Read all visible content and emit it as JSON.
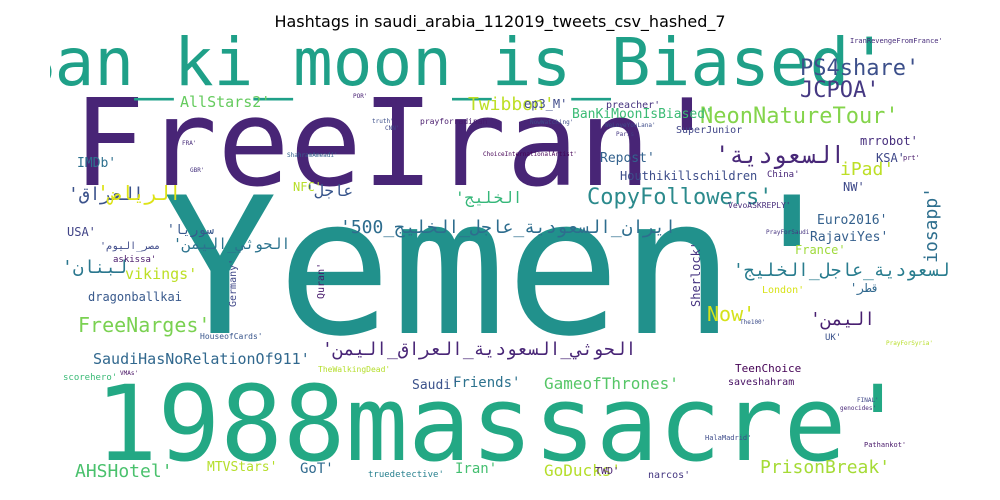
{
  "chart_data": {
    "type": "wordcloud",
    "title": "Hashtags in saudi_arabia_112019_tweets_csv_hashed_7",
    "words": [
      {
        "text": "Yemen'",
        "size": 190,
        "color": "#21918c"
      },
      {
        "text": "FreeIran'",
        "size": 120,
        "color": "#482576"
      },
      {
        "text": "1988massacre'",
        "size": 104,
        "color": "#23a884"
      },
      {
        "text": "Ban_ki_moon_is_Biased'",
        "size": 66,
        "color": "#1fa088"
      },
      {
        "text": "NeonNatureTour'",
        "size": 22,
        "color": "#84d44b"
      },
      {
        "text": "CopyFollowers'",
        "size": 22,
        "color": "#2b8a8c"
      },
      {
        "text": "JCPOA'",
        "size": 22,
        "color": "#453882"
      },
      {
        "text": "PS4share'",
        "size": 22,
        "color": "#3c4f8a"
      },
      {
        "text": "FreeNarges'",
        "size": 20,
        "color": "#7ad151"
      },
      {
        "text": "PrisonBreak'",
        "size": 18,
        "color": "#a5db36"
      },
      {
        "text": "AHSHotel'",
        "size": 18,
        "color": "#4ac16d"
      },
      {
        "text": "Now'",
        "size": 20,
        "color": "#d5e21a"
      },
      {
        "text": "iPad'",
        "size": 18,
        "color": "#bddf26"
      },
      {
        "text": "Twibbon'",
        "size": 18,
        "color": "#bddf26"
      },
      {
        "text": "GameofThrones'",
        "size": 16,
        "color": "#56c667"
      },
      {
        "text": "GoDucks'",
        "size": 16,
        "color": "#b5de2b"
      },
      {
        "text": "iosapp'",
        "size": 18,
        "color": "#2e6f8e"
      },
      {
        "text": "SaudiHasNoRelationOf911'",
        "size": 15,
        "color": "#31688e"
      },
      {
        "text": "AllStars2'",
        "size": 15,
        "color": "#65cb5e"
      },
      {
        "text": "BanKiMoonIsBiased'",
        "size": 13,
        "color": "#3bbb75"
      },
      {
        "text": "vikings'",
        "size": 15,
        "color": "#bddf26"
      },
      {
        "text": "Friends'",
        "size": 14,
        "color": "#2c728e"
      },
      {
        "text": "Euro2016'",
        "size": 13,
        "color": "#34618d"
      },
      {
        "text": "RajaviYes'",
        "size": 13,
        "color": "#355f8d"
      },
      {
        "text": "Repost'",
        "size": 13,
        "color": "#33628d"
      },
      {
        "text": "Iran'",
        "size": 14,
        "color": "#44bf70"
      },
      {
        "text": "MTVStars'",
        "size": 13,
        "color": "#b5de2b"
      },
      {
        "text": "GoT'",
        "size": 14,
        "color": "#306a8e"
      },
      {
        "text": "Saudi'",
        "size": 13,
        "color": "#3b528b"
      },
      {
        "text": "TeenChoice",
        "size": 11,
        "color": "#440154"
      },
      {
        "text": "dragonballkai",
        "size": 12,
        "color": "#38598c"
      },
      {
        "text": "Houthikillschildren",
        "size": 12,
        "color": "#3d4d8a"
      },
      {
        "text": "mrrobot'",
        "size": 12,
        "color": "#472f7d"
      },
      {
        "text": "IMDb'",
        "size": 13,
        "color": "#2d708e"
      },
      {
        "text": "USA'",
        "size": 12,
        "color": "#414487"
      },
      {
        "text": "NFC'",
        "size": 12,
        "color": "#b8de29"
      },
      {
        "text": "KSA'",
        "size": 12,
        "color": "#3f4889"
      },
      {
        "text": "NW'",
        "size": 12,
        "color": "#3e4989"
      },
      {
        "text": "France'",
        "size": 12,
        "color": "#9fda3a"
      },
      {
        "text": "Sherlock'",
        "size": 12,
        "color": "#463480"
      },
      {
        "text": "Quran'",
        "size": 10,
        "color": "#481a6c"
      },
      {
        "text": "Germany'",
        "size": 10,
        "color": "#3f4788"
      },
      {
        "text": "London'",
        "size": 10,
        "color": "#d8e219"
      },
      {
        "text": "ep3_M'",
        "size": 12,
        "color": "#3e4a89"
      },
      {
        "text": "RT'",
        "size": 11,
        "color": "#482475"
      },
      {
        "text": "preacher'",
        "size": 10,
        "color": "#46337f"
      },
      {
        "text": "SuperJunior",
        "size": 10,
        "color": "#404688"
      },
      {
        "text": "China'",
        "size": 9,
        "color": "#482677"
      },
      {
        "text": "saveshahram",
        "size": 10,
        "color": "#471063"
      },
      {
        "text": "narcos'",
        "size": 10,
        "color": "#453781"
      },
      {
        "text": "TWD'",
        "size": 10,
        "color": "#481f70"
      },
      {
        "text": "truedetective'",
        "size": 9,
        "color": "#27808e"
      },
      {
        "text": "scorehero'",
        "size": 9,
        "color": "#3aba76"
      },
      {
        "text": "HouseofCards'",
        "size": 8,
        "color": "#39568c"
      },
      {
        "text": "askissa'",
        "size": 9,
        "color": "#481769"
      },
      {
        "text": "TheWalkingDead'",
        "size": 8,
        "color": "#b5de2b"
      },
      {
        "text": "VevoASKREPLY'",
        "size": 8,
        "color": "#472d7b"
      },
      {
        "text": "IranRevengeFromFrance'",
        "size": 7,
        "color": "#472c7a"
      },
      {
        "text": "prayforradinah",
        "size": 8,
        "color": "#481b6d"
      },
      {
        "text": "HalaMadrid'",
        "size": 7,
        "color": "#3e4c8a"
      },
      {
        "text": "Pathankot'",
        "size": 7,
        "color": "#48186a"
      },
      {
        "text": "UK'",
        "size": 9,
        "color": "#3b528b"
      },
      {
        "text": "FINAL'",
        "size": 6,
        "color": "#3f4788"
      },
      {
        "text": "genocides'",
        "size": 6,
        "color": "#482878"
      },
      {
        "text": "ChoiceInternationalArtist'",
        "size": 6,
        "color": "#440154"
      },
      {
        "text": "ShahramAmeadi'",
        "size": 6,
        "color": "#34618d"
      },
      {
        "text": "NowWatching'",
        "size": 6,
        "color": "#3e4a89"
      },
      {
        "text": "truth'",
        "size": 6,
        "color": "#3c4f8a"
      },
      {
        "text": "WeLoveYouLana'",
        "size": 6,
        "color": "#3e4c8a"
      },
      {
        "text": "prt'",
        "size": 7,
        "color": "#48186a"
      },
      {
        "text": "GBR'",
        "size": 6,
        "color": "#46327e"
      },
      {
        "text": "FRA'",
        "size": 6,
        "color": "#472c7a"
      },
      {
        "text": "POR'",
        "size": 6,
        "color": "#482173"
      },
      {
        "text": "CNN'",
        "size": 6,
        "color": "#3f4889"
      },
      {
        "text": "The100'",
        "size": 6,
        "color": "#3d4d8a"
      },
      {
        "text": "PrayForSyria'",
        "size": 6,
        "color": "#b8de29"
      },
      {
        "text": "VMAs'",
        "size": 6,
        "color": "#471063"
      },
      {
        "text": "Paris",
        "size": 6,
        "color": "#453882"
      },
      {
        "text": "PrayForSaudi",
        "size": 6,
        "color": "#463480"
      },
      {
        "text": "'ﺍﻟﺴﻌﻮﺩﻳﺔ",
        "size": 24,
        "color": "#482878"
      },
      {
        "text": "'ﺍﻟﻌﺮﺍﻕ",
        "size": 18,
        "color": "#3b528b"
      },
      {
        "text": "'ﺍﻟﺨﻠﻴﺞ",
        "size": 16,
        "color": "#35b779"
      },
      {
        "text": "'ﻋﺎﺟﻞ",
        "size": 16,
        "color": "#39568c"
      },
      {
        "text": "'ﺍﻟﺴﻌﻮﺩﻳﺔ_ﻋﺎﺟﻞ_ﺍﻟﺨﻠﻴﺞ",
        "size": 18,
        "color": "#287c8e"
      },
      {
        "text": "'ﺍﻳﺮﺍﻥ_ﺍﻟﺴﻌﻮﺩﻳﺔ_ﻋﺎﺟﻞ_ﺍﻟﺨﻠﻴﺞ_500",
        "size": 18,
        "color": "#2e6d8e"
      },
      {
        "text": "'ﺍﻟﺤﻮﺛﻲ_ﺍﻟﺴﻌﻮﺩﻳﺔ_ﺍﻟﻌﺮﺍﻕ_ﺍﻟﻴﻤﻦ",
        "size": 18,
        "color": "#482576"
      },
      {
        "text": "'ﺍﻟﺮﻳﺎﺽ",
        "size": 20,
        "color": "#dde318"
      },
      {
        "text": "'ﺍﻟﻴﻤﻦ",
        "size": 18,
        "color": "#481f70"
      },
      {
        "text": "'ﻟﺒﻨﺎﻥ",
        "size": 18,
        "color": "#2a778e"
      },
      {
        "text": "'ﺍﻟﺤﻮﺛﻲ_ﺍﻟﻴﻤﻦ",
        "size": 15,
        "color": "#2c738e"
      },
      {
        "text": "'ﺳﻮﺭﻳﺎ",
        "size": 13,
        "color": "#38588c"
      },
      {
        "text": "'ﻗﻄﺮ",
        "size": 12,
        "color": "#31688e"
      },
      {
        "text": "'ﻣﺼﺮ_ﺍﻟﻴﻮﻡ",
        "size": 10,
        "color": "#3e4a89"
      }
    ]
  }
}
